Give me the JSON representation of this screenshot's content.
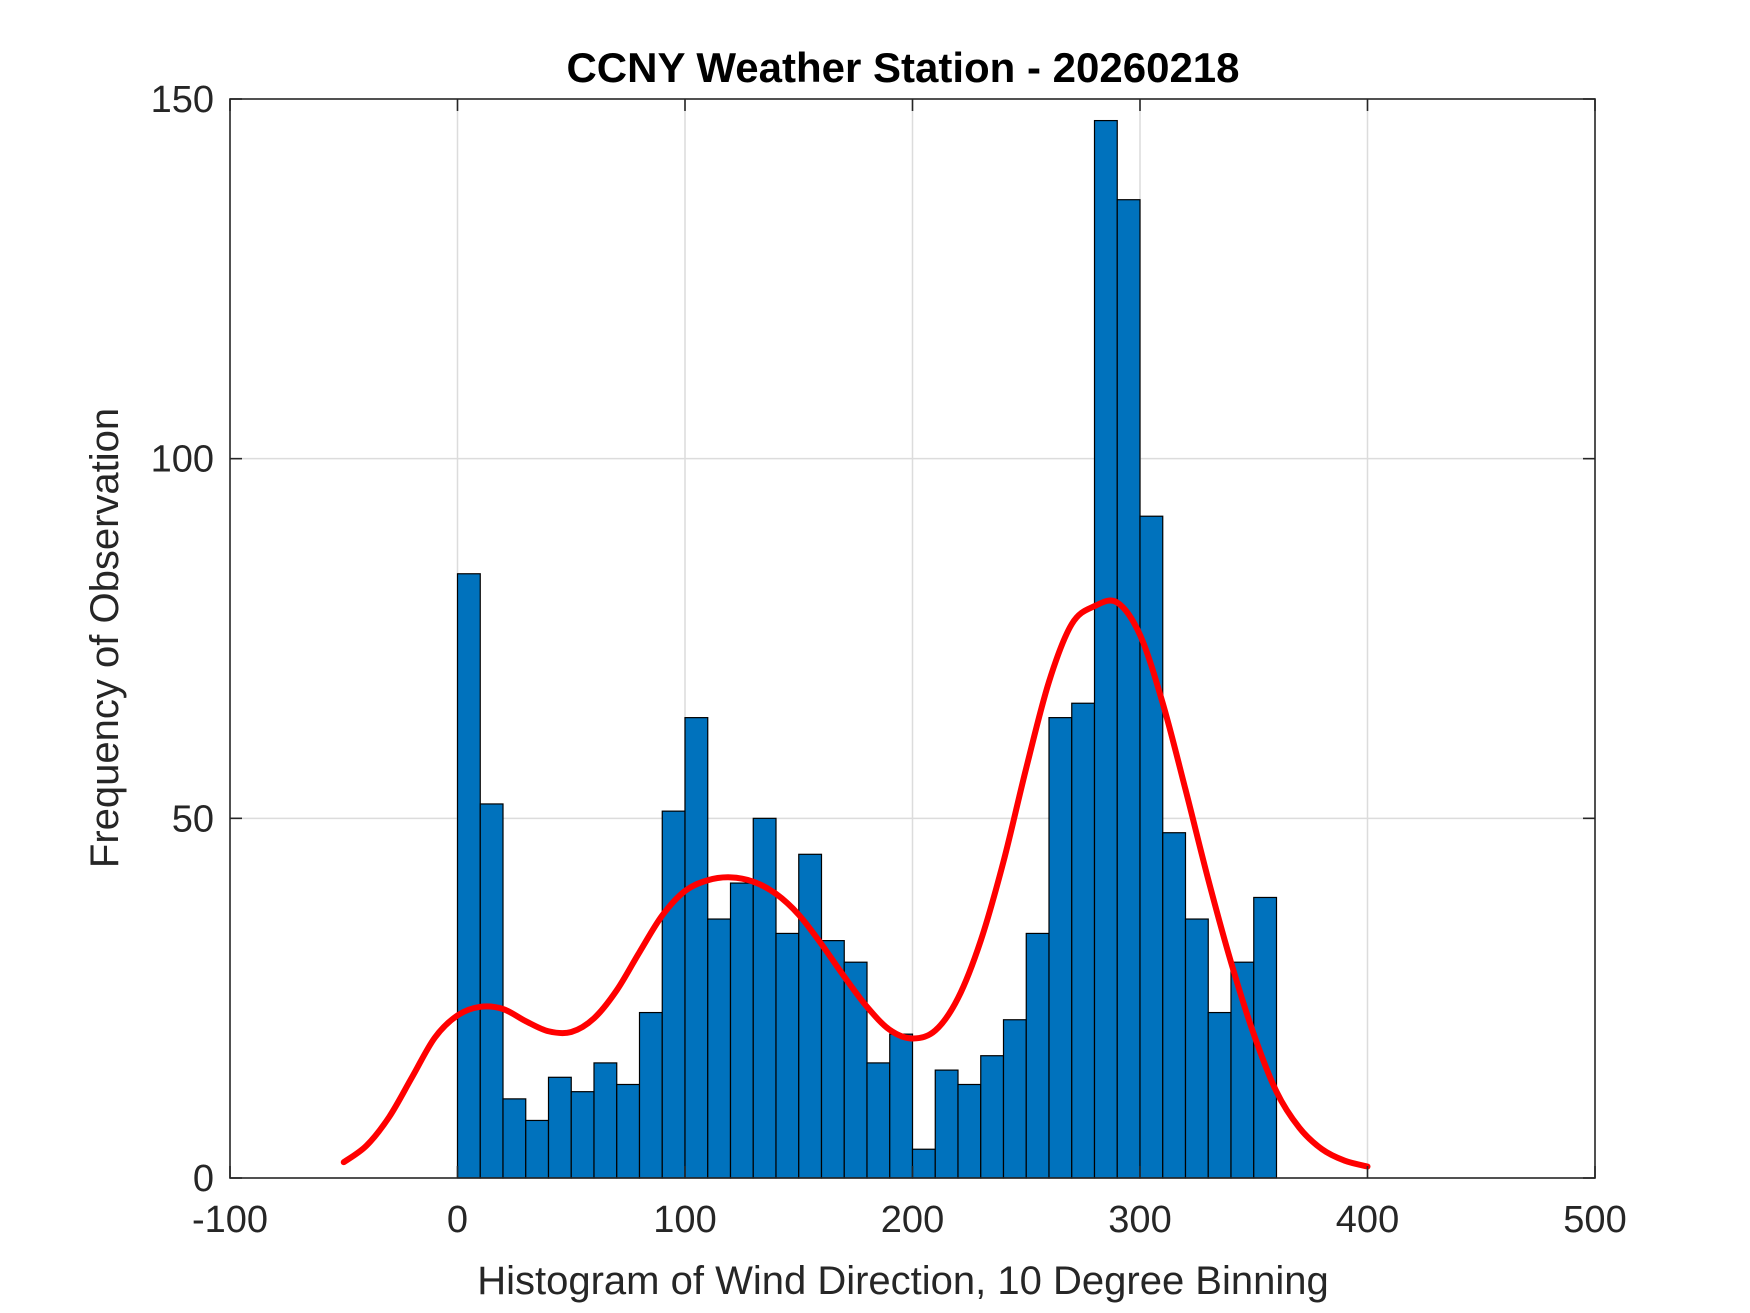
{
  "chart_data": {
    "type": "bar",
    "title": "CCNY Weather Station - 20260218",
    "xlabel": "Histogram of Wind Direction, 10 Degree Binning",
    "ylabel": "Frequency of Observation",
    "xlim": [
      -100,
      500
    ],
    "ylim": [
      0,
      150
    ],
    "xticks": [
      -100,
      0,
      100,
      200,
      300,
      400,
      500
    ],
    "yticks": [
      0,
      50,
      100,
      150
    ],
    "grid": true,
    "bin_width": 10,
    "bin_edges_start": [
      0,
      10,
      20,
      30,
      40,
      50,
      60,
      70,
      80,
      90,
      100,
      110,
      120,
      130,
      140,
      150,
      160,
      170,
      180,
      190,
      200,
      210,
      220,
      230,
      240,
      250,
      260,
      270,
      280,
      290,
      300,
      310,
      320,
      330,
      340,
      350
    ],
    "counts": [
      84,
      52,
      11,
      8,
      14,
      12,
      16,
      13,
      23,
      51,
      64,
      36,
      41,
      50,
      34,
      45,
      33,
      30,
      16,
      20,
      4,
      15,
      13,
      17,
      22,
      34,
      64,
      66,
      147,
      136,
      92,
      48,
      36,
      23,
      30,
      39
    ],
    "fit_curve": {
      "x": [
        -50,
        -40,
        -30,
        -20,
        -10,
        0,
        10,
        20,
        30,
        40,
        50,
        60,
        70,
        80,
        90,
        100,
        110,
        120,
        130,
        140,
        150,
        160,
        170,
        180,
        190,
        200,
        210,
        220,
        230,
        240,
        250,
        260,
        270,
        280,
        290,
        300,
        310,
        320,
        330,
        340,
        350,
        360,
        370,
        380,
        390,
        400
      ],
      "y": [
        2.2,
        4.5,
        8.5,
        14,
        19.5,
        22.6,
        23.8,
        23.5,
        21.8,
        20.4,
        20.3,
        22.2,
        26.1,
        31.4,
        36.5,
        39.9,
        41.4,
        41.8,
        41.2,
        39.5,
        36.6,
        32.5,
        28.0,
        23.8,
        20.6,
        19.4,
        20.5,
        25.0,
        33.0,
        44.0,
        57.0,
        69.0,
        77.0,
        79.5,
        80.0,
        75.5,
        66.0,
        54.0,
        41.5,
        30.0,
        20.0,
        12.0,
        7.0,
        4.0,
        2.4,
        1.6
      ]
    },
    "colors": {
      "bars": "#0072BD",
      "fit": "#FF0000"
    }
  }
}
